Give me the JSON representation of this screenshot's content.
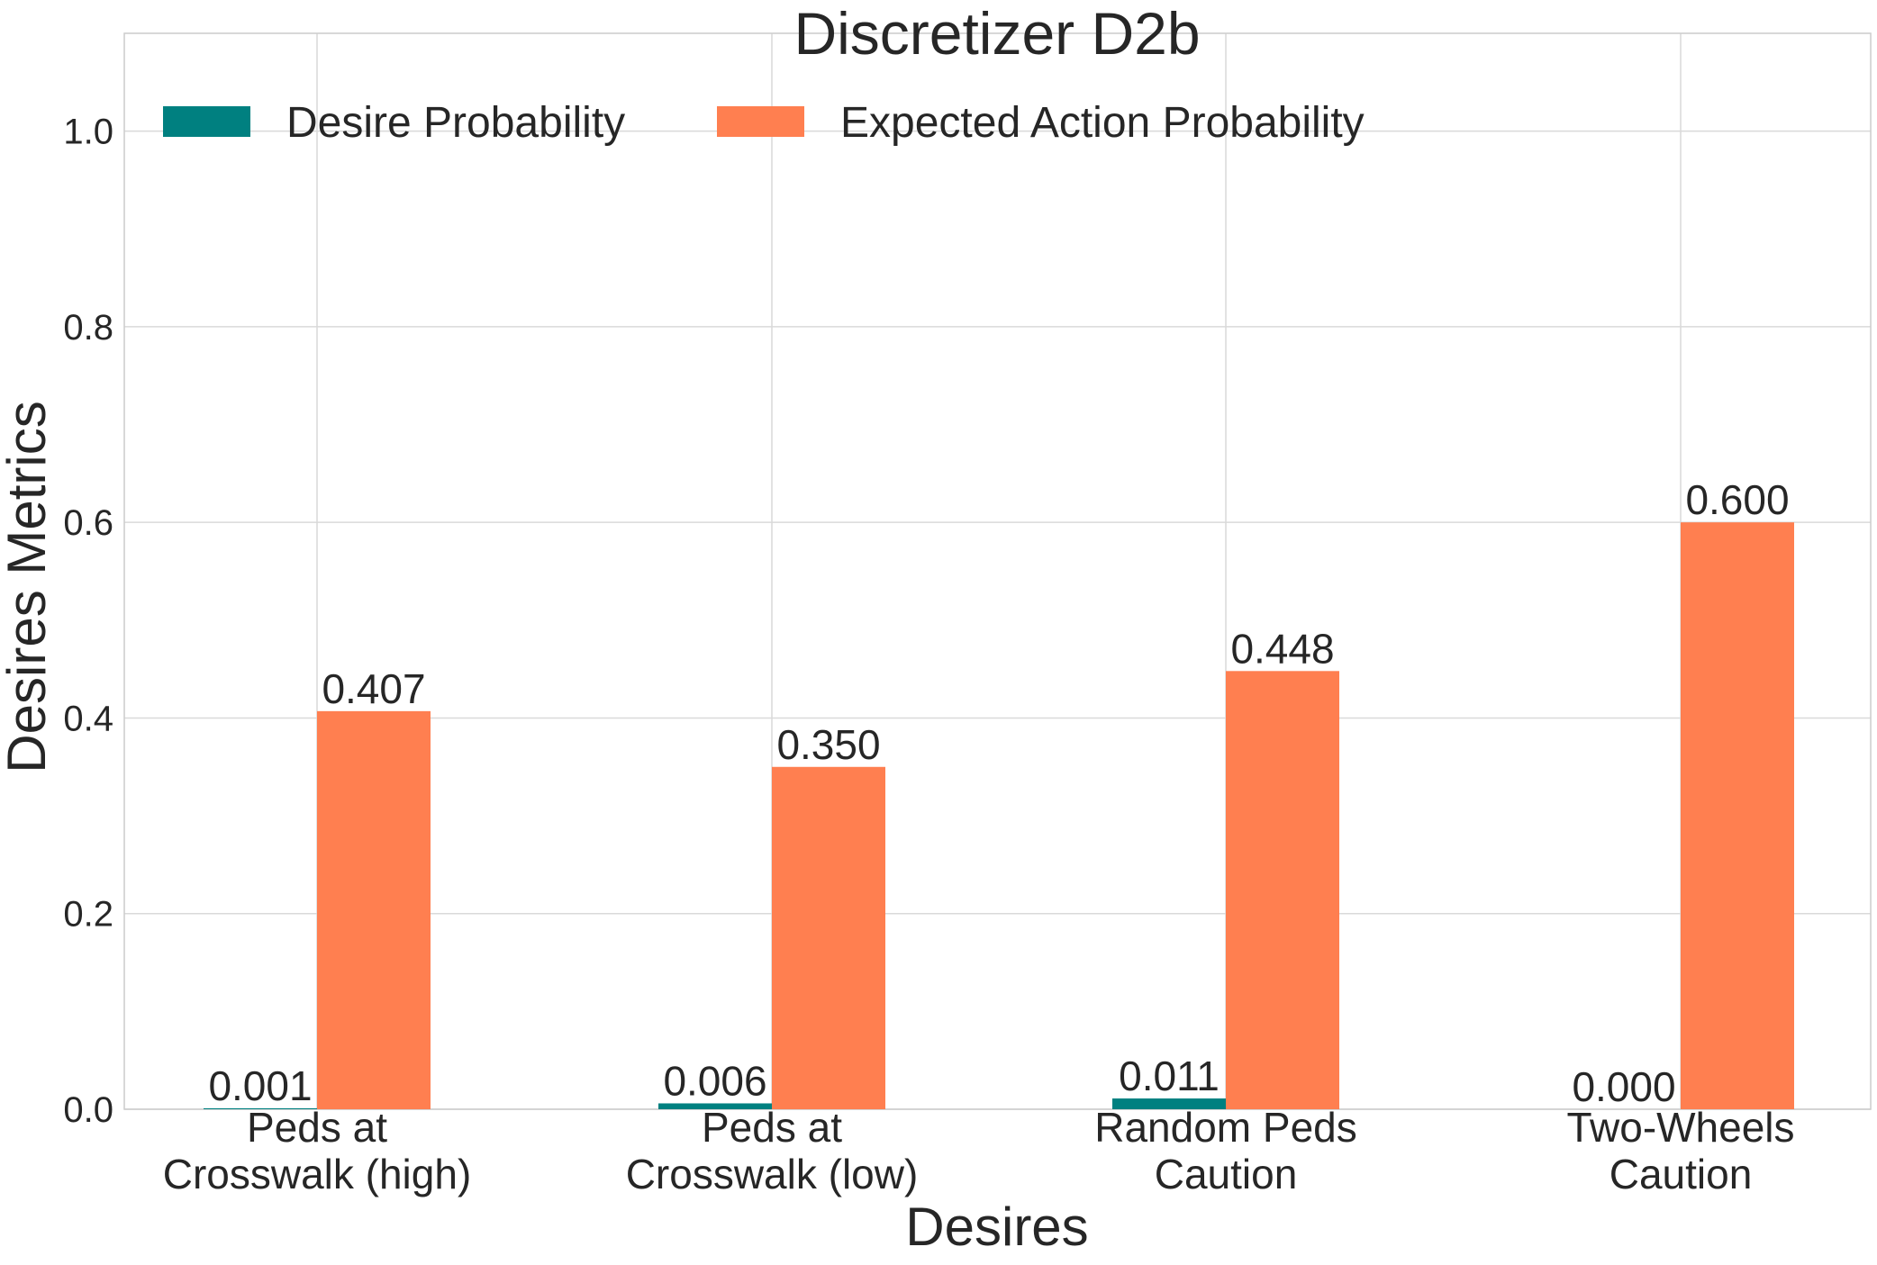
{
  "chart_data": {
    "type": "bar",
    "title": "Discretizer D2b",
    "xlabel": "Desires",
    "ylabel": "Desires Metrics",
    "categories": [
      [
        "Peds at",
        "Crosswalk (high)"
      ],
      [
        "Peds at",
        "Crosswalk (low)"
      ],
      [
        "Random Peds",
        "Caution"
      ],
      [
        "Two-Wheels",
        "Caution"
      ]
    ],
    "series": [
      {
        "name": "Desire Probability",
        "color": "#008080",
        "values": [
          0.001,
          0.006,
          0.011,
          0.0
        ],
        "labels": [
          "0.001",
          "0.006",
          "0.011",
          "0.000"
        ]
      },
      {
        "name": "Expected Action Probability",
        "color": "#ff7f50",
        "values": [
          0.407,
          0.35,
          0.448,
          0.6
        ],
        "labels": [
          "0.407",
          "0.350",
          "0.448",
          "0.600"
        ]
      }
    ],
    "ylim": [
      0,
      1.1
    ],
    "yticks": [
      0.0,
      0.2,
      0.4,
      0.6,
      0.8,
      1.0
    ],
    "ytick_labels": [
      "0.0",
      "0.2",
      "0.4",
      "0.6",
      "0.8",
      "1.0"
    ],
    "grid": true,
    "legend_position": "top-left"
  }
}
